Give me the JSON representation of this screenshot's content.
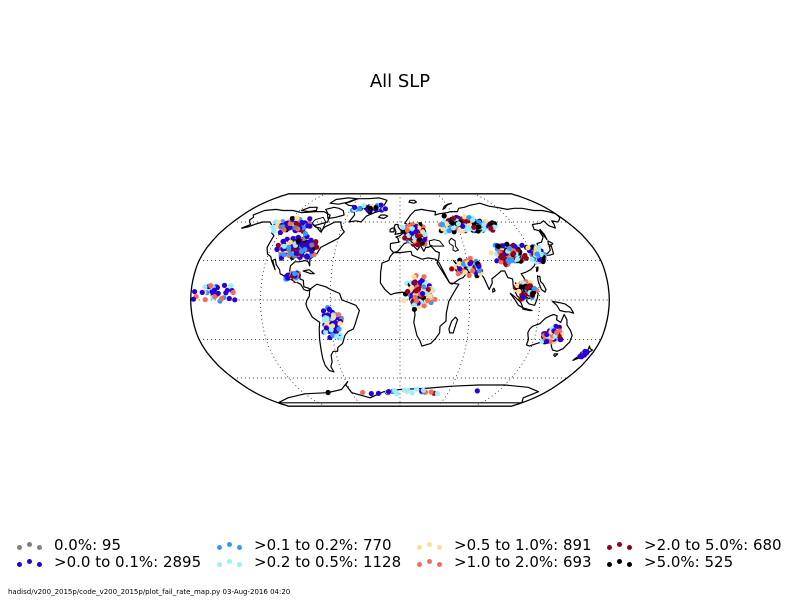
{
  "title": "All SLP",
  "legend": [
    {
      "label": "0.0%: 95",
      "color": "#808080"
    },
    {
      "label": ">0.0 to 0.1%: 2895",
      "color": "#2a00d5"
    },
    {
      "label": ">0.1 to 0.2%: 770",
      "color": "#3399ff"
    },
    {
      "label": ">0.2 to 0.5%: 1128",
      "color": "#99eeff"
    },
    {
      "label": ">0.5 to 1.0%: 891",
      "color": "#ffdd99"
    },
    {
      "label": ">1.0 to 2.0%: 693",
      "color": "#f46d5a"
    },
    {
      "label": ">2.0 to 5.0%: 680",
      "color": "#99001a"
    },
    {
      "label": ">5.0%: 525",
      "color": "#000000"
    }
  ],
  "footer": "hadisd/v200_2015p/code_v200_2015p/plot_fail_rate_map.py   03-Aug-2016 04:20",
  "map": {
    "projection": "robinson",
    "graticule": "dotted",
    "station_clusters": [
      {
        "region": "north-america",
        "lon": -95,
        "lat": 40,
        "spread_lon": 22,
        "spread_lat": 10,
        "count": 260,
        "mix": [
          1,
          6,
          2,
          1,
          1,
          1,
          2,
          1
        ]
      },
      {
        "region": "alaska-canada",
        "lon": -115,
        "lat": 58,
        "spread_lon": 30,
        "spread_lat": 9,
        "count": 70,
        "mix": [
          1,
          5,
          2,
          2,
          1,
          1,
          1,
          1
        ]
      },
      {
        "region": "mexico-central-america",
        "lon": -95,
        "lat": 18,
        "spread_lon": 10,
        "spread_lat": 5,
        "count": 35,
        "mix": [
          0,
          4,
          2,
          2,
          2,
          1,
          1,
          1
        ]
      },
      {
        "region": "south-america",
        "lon": -60,
        "lat": -18,
        "spread_lon": 12,
        "spread_lat": 16,
        "count": 110,
        "mix": [
          0,
          5,
          2,
          3,
          2,
          1,
          0,
          0
        ]
      },
      {
        "region": "greenland-arctic",
        "lon": -40,
        "lat": 72,
        "spread_lon": 30,
        "spread_lat": 5,
        "count": 25,
        "mix": [
          0,
          3,
          2,
          2,
          1,
          1,
          1,
          1
        ]
      },
      {
        "region": "europe",
        "lon": 15,
        "lat": 50,
        "spread_lon": 14,
        "spread_lat": 9,
        "count": 260,
        "mix": [
          0,
          1,
          1,
          2,
          2,
          3,
          4,
          4
        ]
      },
      {
        "region": "russia",
        "lon": 70,
        "lat": 58,
        "spread_lon": 38,
        "spread_lat": 8,
        "count": 220,
        "mix": [
          0,
          1,
          2,
          3,
          2,
          2,
          3,
          3
        ]
      },
      {
        "region": "central-asia-china",
        "lon": 100,
        "lat": 35,
        "spread_lon": 18,
        "spread_lat": 10,
        "count": 180,
        "mix": [
          0,
          2,
          3,
          2,
          1,
          2,
          3,
          3
        ]
      },
      {
        "region": "middle-east-india",
        "lon": 60,
        "lat": 25,
        "spread_lon": 16,
        "spread_lat": 9,
        "count": 90,
        "mix": [
          0,
          1,
          1,
          2,
          2,
          3,
          2,
          1
        ]
      },
      {
        "region": "east-asia-japan",
        "lon": 125,
        "lat": 35,
        "spread_lon": 8,
        "spread_lat": 9,
        "count": 90,
        "mix": [
          0,
          1,
          3,
          2,
          1,
          1,
          2,
          3
        ]
      },
      {
        "region": "southeast-asia",
        "lon": 108,
        "lat": 8,
        "spread_lon": 12,
        "spread_lat": 10,
        "count": 70,
        "mix": [
          0,
          1,
          2,
          2,
          1,
          1,
          2,
          3
        ]
      },
      {
        "region": "africa",
        "lon": 18,
        "lat": 5,
        "spread_lon": 16,
        "spread_lat": 16,
        "count": 110,
        "mix": [
          0,
          3,
          1,
          2,
          3,
          3,
          2,
          1
        ]
      },
      {
        "region": "australia",
        "lon": 135,
        "lat": -27,
        "spread_lon": 12,
        "spread_lat": 8,
        "count": 90,
        "mix": [
          0,
          3,
          1,
          2,
          2,
          2,
          1,
          1
        ]
      },
      {
        "region": "new-zealand",
        "lon": 173,
        "lat": -41,
        "spread_lon": 3,
        "spread_lat": 4,
        "count": 14,
        "mix": [
          0,
          4,
          1,
          1,
          0,
          1,
          0,
          0
        ]
      },
      {
        "region": "pacific-islands",
        "lon": -160,
        "lat": 5,
        "spread_lon": 25,
        "spread_lat": 12,
        "count": 35,
        "mix": [
          0,
          4,
          2,
          2,
          1,
          1,
          0,
          1
        ]
      },
      {
        "region": "antarctica",
        "lon": 0,
        "lat": -72,
        "spread_lon": 120,
        "spread_lat": 3,
        "count": 25,
        "mix": [
          0,
          3,
          2,
          2,
          1,
          1,
          1,
          1
        ]
      }
    ]
  }
}
